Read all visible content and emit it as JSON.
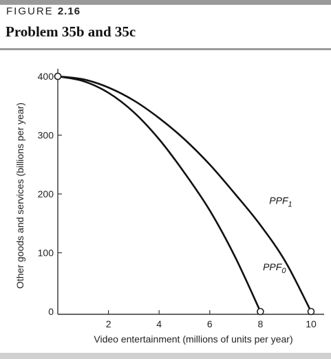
{
  "figure": {
    "label_prefix": "FIGURE",
    "label_number": "2.16",
    "title": "Problem 35b and 35c"
  },
  "chart_data": {
    "type": "line",
    "xlabel": "Video entertainment (millions of units per year)",
    "ylabel": "Other goods and services (billions per year)",
    "xlim": [
      0,
      10.4
    ],
    "ylim": [
      0,
      410
    ],
    "x_ticks": [
      0,
      2,
      4,
      6,
      8,
      10
    ],
    "y_ticks": [
      0,
      100,
      200,
      300,
      400
    ],
    "x_tick_labels": [
      "2",
      "4",
      "6",
      "8",
      "10"
    ],
    "y_tick_labels": [
      "0",
      "100",
      "200",
      "300",
      "400"
    ],
    "grid": false,
    "series": [
      {
        "name": "PPF0",
        "label": "PPF",
        "subscript": "0",
        "label_at": [
          8.1,
          70
        ],
        "points": [
          [
            0,
            400
          ],
          [
            1,
            392
          ],
          [
            2,
            372
          ],
          [
            3,
            339
          ],
          [
            4,
            293
          ],
          [
            5,
            236
          ],
          [
            6,
            172
          ],
          [
            7,
            93
          ],
          [
            8,
            0
          ]
        ],
        "endpoint_markers": [
          [
            0,
            400
          ],
          [
            8,
            0
          ]
        ]
      },
      {
        "name": "PPF1",
        "label": "PPF",
        "subscript": "1",
        "label_at": [
          8.35,
          183
        ],
        "points": [
          [
            0,
            400
          ],
          [
            1,
            395
          ],
          [
            2,
            381
          ],
          [
            3,
            359
          ],
          [
            4,
            329
          ],
          [
            5,
            293
          ],
          [
            6,
            250
          ],
          [
            7,
            200
          ],
          [
            8,
            147
          ],
          [
            9,
            84
          ],
          [
            10,
            0
          ]
        ],
        "endpoint_markers": [
          [
            0,
            400
          ],
          [
            10,
            0
          ]
        ]
      }
    ]
  }
}
